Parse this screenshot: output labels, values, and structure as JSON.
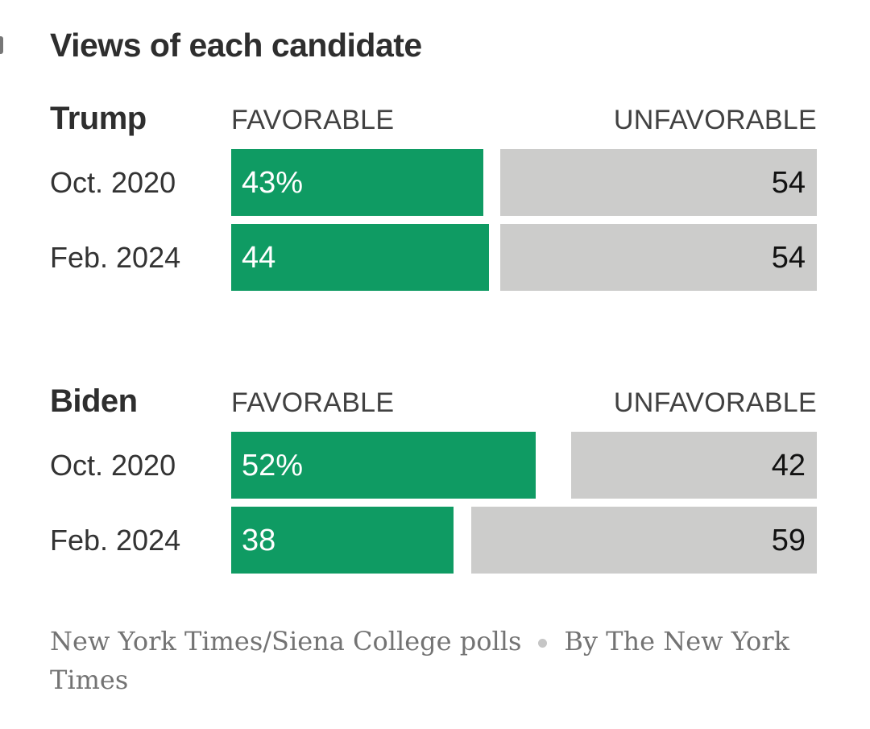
{
  "title": "Views of each candidate",
  "colors": {
    "favorable_bar": "#0f9b63",
    "unfavorable_bar": "#cccccb",
    "title_text": "#2e2e2e",
    "footer_text": "#737373"
  },
  "sections": [
    {
      "name": "Trump",
      "favorable_header": "FAVORABLE",
      "unfavorable_header": "UNFAVORABLE",
      "rows": [
        {
          "label": "Oct. 2020",
          "favorable_value": 43,
          "favorable_label": "43%",
          "unfavorable_value": 54,
          "unfavorable_label": "54"
        },
        {
          "label": "Feb. 2024",
          "favorable_value": 44,
          "favorable_label": "44",
          "unfavorable_value": 54,
          "unfavorable_label": "54"
        }
      ]
    },
    {
      "name": "Biden",
      "favorable_header": "FAVORABLE",
      "unfavorable_header": "UNFAVORABLE",
      "rows": [
        {
          "label": "Oct. 2020",
          "favorable_value": 52,
          "favorable_label": "52%",
          "unfavorable_value": 42,
          "unfavorable_label": "42"
        },
        {
          "label": "Feb. 2024",
          "favorable_value": 38,
          "favorable_label": "38",
          "unfavorable_value": 59,
          "unfavorable_label": "59"
        }
      ]
    }
  ],
  "footer": {
    "source": "New York Times/Siena College polls",
    "separator_icon": "dot",
    "byline": "By The New York Times"
  },
  "chart_data": {
    "type": "bar",
    "orientation": "horizontal",
    "title": "Views of each candidate",
    "unit": "percent",
    "xlim": [
      0,
      100
    ],
    "grid": false,
    "legend_position": "column-headers",
    "groups": [
      {
        "candidate": "Trump",
        "categories": [
          "Oct. 2020",
          "Feb. 2024"
        ],
        "series": [
          {
            "name": "Favorable",
            "color": "#0f9b63",
            "values": [
              43,
              44
            ]
          },
          {
            "name": "Unfavorable",
            "color": "#cccccb",
            "values": [
              54,
              54
            ]
          }
        ]
      },
      {
        "candidate": "Biden",
        "categories": [
          "Oct. 2020",
          "Feb. 2024"
        ],
        "series": [
          {
            "name": "Favorable",
            "color": "#0f9b63",
            "values": [
              52,
              38
            ]
          },
          {
            "name": "Unfavorable",
            "color": "#cccccb",
            "values": [
              42,
              59
            ]
          }
        ]
      }
    ],
    "source": "New York Times/Siena College polls",
    "byline": "By The New York Times"
  }
}
